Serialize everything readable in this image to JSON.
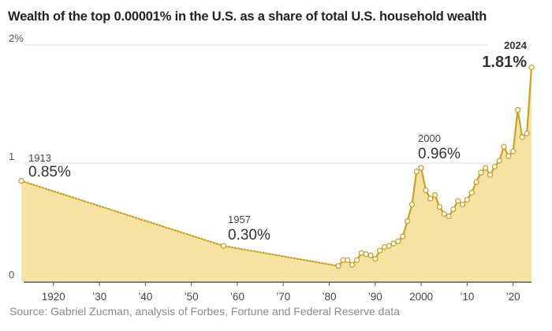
{
  "chart_data": {
    "type": "area",
    "title": "Wealth of the top 0.00001% in the U.S. as a share of total U.S. household wealth",
    "source": "Source: Gabriel Zucman, analysis of Forbes, Fortune and Federal Reserve data",
    "xlabel": "",
    "ylabel": "",
    "xlim": [
      1913,
      2024
    ],
    "ylim": [
      0,
      2
    ],
    "y_ticks": [
      {
        "value": 0,
        "label": "0"
      },
      {
        "value": 1,
        "label": "1"
      },
      {
        "value": 2,
        "label": "2%"
      }
    ],
    "x_ticks": [
      {
        "value": 1920,
        "label": "1920"
      },
      {
        "value": 1930,
        "label": "’30"
      },
      {
        "value": 1940,
        "label": "’40"
      },
      {
        "value": 1950,
        "label": "’50"
      },
      {
        "value": 1960,
        "label": "’60"
      },
      {
        "value": 1970,
        "label": "’70"
      },
      {
        "value": 1980,
        "label": "’80"
      },
      {
        "value": 1990,
        "label": "’90"
      },
      {
        "value": 2000,
        "label": "2000"
      },
      {
        "value": 2010,
        "label": "’10"
      },
      {
        "value": 2020,
        "label": "’20"
      }
    ],
    "grid": true,
    "legend": "none",
    "colors": {
      "line": "#c9a227",
      "fill": "#f6e3a3",
      "marker_fill": "#ffffff",
      "grid": "#dddddd",
      "axis": "#555555"
    },
    "sparse_points": {
      "note": "connected with dotted line",
      "x": [
        1913,
        1957,
        1982
      ],
      "y": [
        0.85,
        0.3,
        0.13
      ]
    },
    "series": [
      {
        "name": "Top 0.00001% wealth share (%)",
        "x": [
          1982,
          1983,
          1984,
          1985,
          1986,
          1987,
          1988,
          1989,
          1990,
          1991,
          1992,
          1993,
          1994,
          1995,
          1996,
          1997,
          1998,
          1999,
          2000,
          2001,
          2002,
          2003,
          2004,
          2005,
          2006,
          2007,
          2008,
          2009,
          2010,
          2011,
          2012,
          2013,
          2014,
          2015,
          2016,
          2017,
          2018,
          2019,
          2020,
          2021,
          2022,
          2023,
          2024
        ],
        "y": [
          0.13,
          0.18,
          0.18,
          0.14,
          0.18,
          0.24,
          0.23,
          0.22,
          0.19,
          0.26,
          0.29,
          0.3,
          0.32,
          0.34,
          0.38,
          0.51,
          0.65,
          0.93,
          0.96,
          0.77,
          0.7,
          0.73,
          0.63,
          0.57,
          0.55,
          0.61,
          0.68,
          0.65,
          0.69,
          0.75,
          0.84,
          0.92,
          0.96,
          0.9,
          0.97,
          1.02,
          1.14,
          1.06,
          1.1,
          1.45,
          1.22,
          1.25,
          1.81
        ]
      }
    ],
    "annotations": [
      {
        "x": 1913,
        "y": 0.85,
        "year": "1913",
        "value": "0.85%",
        "bold": false
      },
      {
        "x": 1957,
        "y": 0.3,
        "year": "1957",
        "value": "0.30%",
        "bold": false
      },
      {
        "x": 2000,
        "y": 0.96,
        "year": "2000",
        "value": "0.96%",
        "bold": false
      },
      {
        "x": 2024,
        "y": 1.81,
        "year": "2024",
        "value": "1.81%",
        "bold": true
      }
    ]
  }
}
